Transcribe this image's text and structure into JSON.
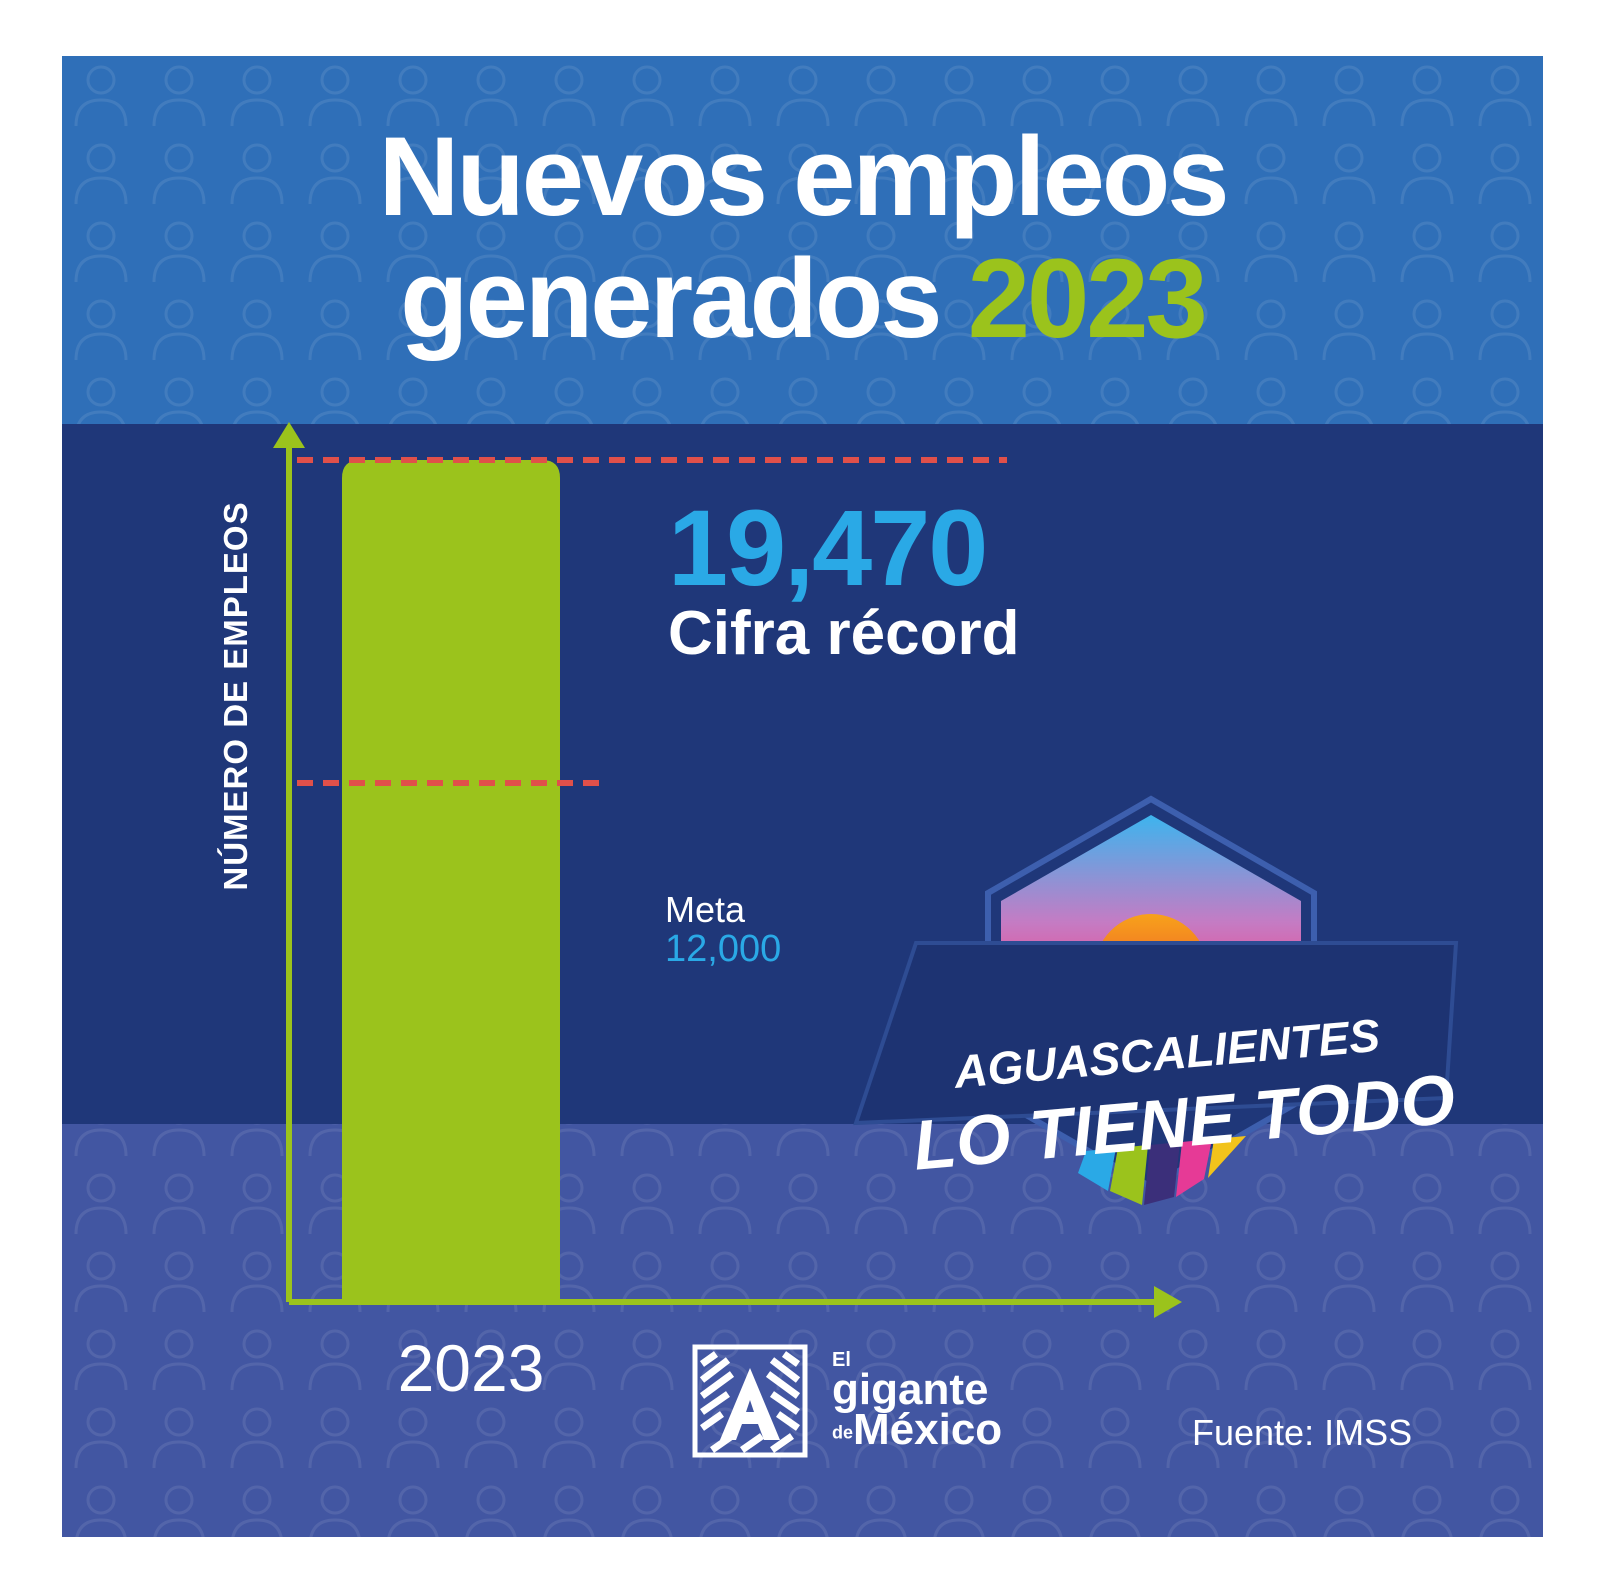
{
  "colors": {
    "top_band": "#2f6fb8",
    "mid_band": "#1f3779",
    "bottom_band": "#4256a2",
    "bar": "#9bc31c",
    "axis": "#9bc31c",
    "reference_line": "#e0504a",
    "highlight_value": "#2aa9e6",
    "title_text": "#ffffff",
    "title_accent": "#9bc31c"
  },
  "title": {
    "line1": "Nuevos empleos",
    "line2_text": "generados",
    "line2_accent": "2023"
  },
  "chart_data": {
    "type": "bar",
    "categories": [
      "2023"
    ],
    "values": [
      19470
    ],
    "ylabel": "NÚMERO DE EMPLEOS",
    "xlabel": "",
    "ylim": [
      0,
      19470
    ],
    "reference_lines": [
      {
        "value": 19470,
        "label": "19,470",
        "caption": "Cifra récord"
      },
      {
        "value": 12000,
        "label": "12,000",
        "caption": "Meta"
      }
    ],
    "grid": false
  },
  "annotations": {
    "record_value": "19,470",
    "record_caption": "Cifra récord",
    "goal_caption": "Meta",
    "goal_value": "12,000"
  },
  "badge": {
    "line1": "AGUASCALIENTES",
    "line2": "LO TIENE TODO"
  },
  "logo": {
    "small": "El",
    "line2": "gigante",
    "de": "de",
    "line3": "México"
  },
  "source": "Fuente: IMSS"
}
